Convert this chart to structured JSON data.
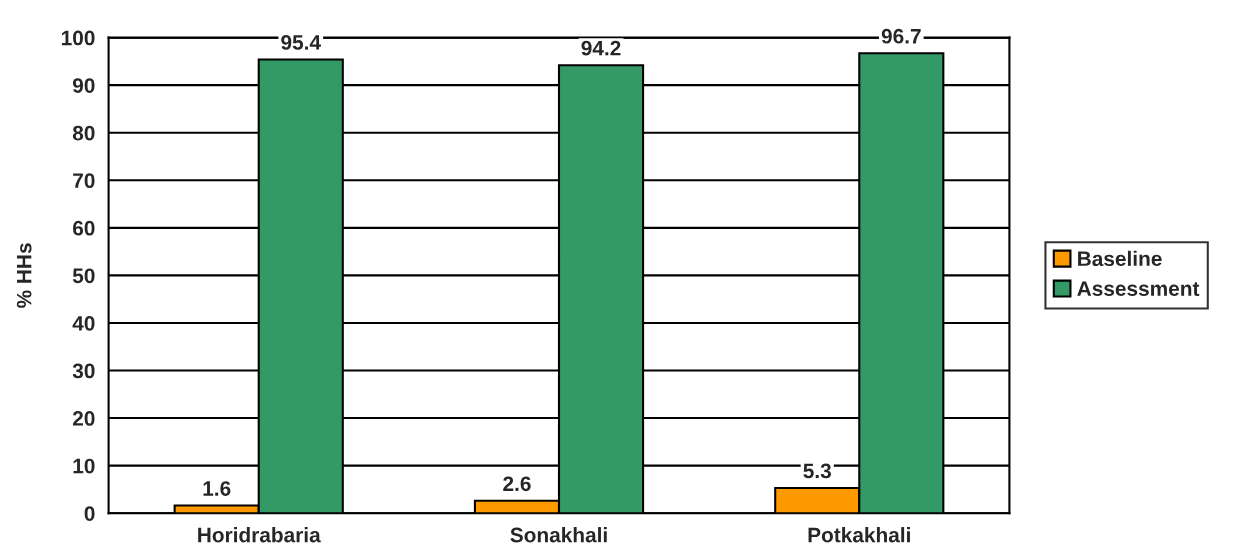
{
  "chart_data": {
    "type": "bar",
    "ylabel": "% HHs",
    "categories": [
      "Horidrabaria",
      "Sonakhali",
      "Potkakhali"
    ],
    "series": [
      {
        "name": "Baseline",
        "color": "#ff9900",
        "values": [
          1.6,
          2.6,
          5.3
        ]
      },
      {
        "name": "Assessment",
        "color": "#339966",
        "values": [
          95.4,
          94.2,
          96.7
        ]
      }
    ],
    "ylim": [
      0,
      100
    ],
    "yticks": [
      0,
      10,
      20,
      30,
      40,
      50,
      60,
      70,
      80,
      90,
      100
    ],
    "grid": "y",
    "legend": "right",
    "data_labels": true
  }
}
